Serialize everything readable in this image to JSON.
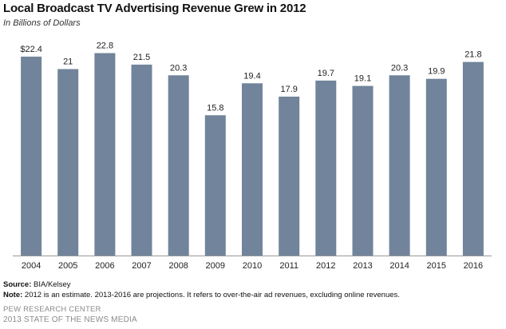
{
  "chart_data": {
    "type": "bar",
    "title": "Local Broadcast TV Advertising Revenue Grew in 2012",
    "subtitle": "In Billions of Dollars",
    "categories": [
      "2004",
      "2005",
      "2006",
      "2007",
      "2008",
      "2009",
      "2010",
      "2011",
      "2012",
      "2013",
      "2014",
      "2015",
      "2016"
    ],
    "values": [
      22.4,
      21,
      22.8,
      21.5,
      20.3,
      15.8,
      19.4,
      17.9,
      19.7,
      19.1,
      20.3,
      19.9,
      21.8
    ],
    "data_labels": [
      "$22.4",
      "21",
      "22.8",
      "21.5",
      "20.3",
      "15.8",
      "19.4",
      "17.9",
      "19.7",
      "19.1",
      "20.3",
      "19.9",
      "21.8"
    ],
    "xlabel": "",
    "ylabel": "",
    "ylim": [
      0,
      24
    ],
    "grid": false,
    "bar_color": "#71849b",
    "axis_color": "#999999"
  },
  "footer": {
    "source_label": "Source:",
    "source_text": " BIA/Kelsey",
    "note_label": "Note:",
    "note_text": " 2012 is an estimate. 2013-2016 are projections. It refers to over-the-air ad revenues, excluding online revenues.",
    "org": "PEW RESEARCH CENTER",
    "report": "2013 STATE OF THE NEWS MEDIA"
  }
}
